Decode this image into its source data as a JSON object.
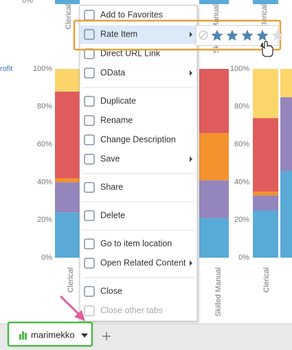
{
  "background_chart": {
    "type": "bar",
    "legend_fragment": "rofit",
    "ylim": [
      0,
      100
    ],
    "yticks": [
      {
        "value": 0,
        "label": "0%"
      },
      {
        "value": 20,
        "label": "20%"
      },
      {
        "value": 40,
        "label": "40%"
      },
      {
        "value": 60,
        "label": "60%"
      },
      {
        "value": 80,
        "label": "80%"
      },
      {
        "value": 100,
        "label": "100%"
      }
    ],
    "top_tick": "0%",
    "top_labels": [
      "Clerical",
      "Skilled Manual",
      "Clerical"
    ],
    "categories": [
      "Clerical",
      "Skilled Manual",
      "Clerical"
    ],
    "colors": [
      "#5aaad8",
      "#9585bd",
      "#f4922e",
      "#e05c5c",
      "#fcd66b"
    ],
    "columns": [
      [
        24,
        16,
        2,
        46,
        12
      ],
      [
        21,
        20,
        25,
        34,
        0
      ],
      [
        25,
        8,
        2,
        39,
        26
      ],
      [
        46,
        39,
        0,
        0,
        15
      ]
    ]
  },
  "menu": {
    "items": [
      {
        "label": "Add to Favorites"
      },
      {
        "label": "Rate Item",
        "submenu": true
      },
      {
        "label": "Direct URL Link"
      },
      {
        "label": "OData",
        "submenu": true
      },
      {
        "label": "Duplicate",
        "separator_before": true
      },
      {
        "label": "Rename"
      },
      {
        "label": "Change Description"
      },
      {
        "label": "Save",
        "submenu": true
      },
      {
        "label": "Share",
        "separator_before": true
      },
      {
        "label": "Delete",
        "separator_before": true
      },
      {
        "label": "Go to item location",
        "separator_before": true
      },
      {
        "label": "Open Related Content",
        "submenu": true
      },
      {
        "label": "Close",
        "separator_before": true
      },
      {
        "label": "Close other tabs",
        "disabled": true
      }
    ]
  },
  "tab": {
    "label": "marimekko"
  }
}
